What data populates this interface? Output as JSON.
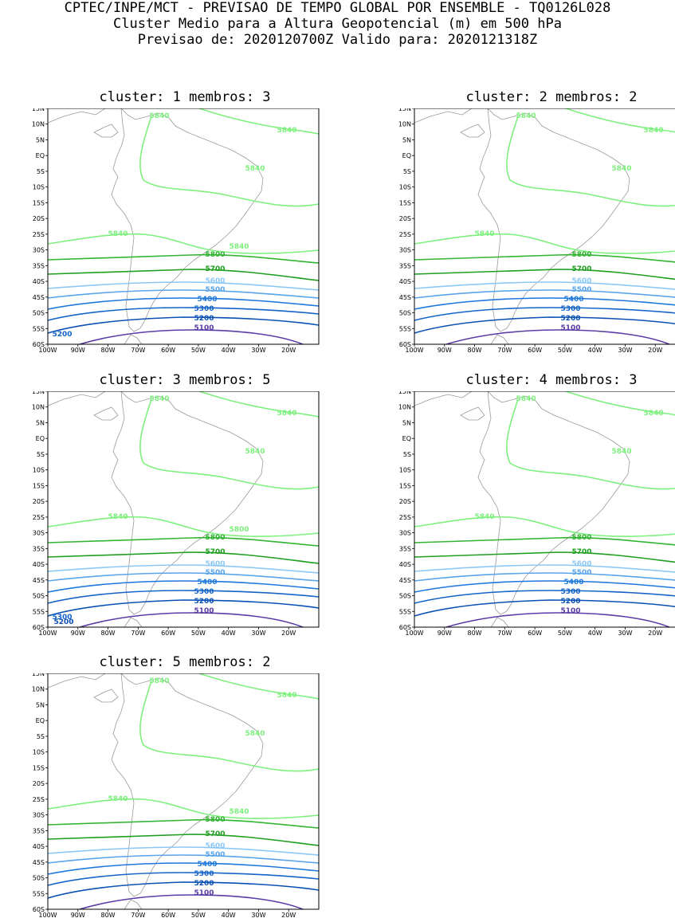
{
  "header": {
    "line1": "CPTEC/INPE/MCT - PREVISAO DE TEMPO GLOBAL POR ENSEMBLE - TQ0126L028",
    "line2": "Cluster Medio para a Altura Geopotencial (m) em 500 hPa",
    "line3": "Previsao de: 2020120700Z   Valido para: 2020121318Z"
  },
  "colors": {
    "c5840": "#7df07d",
    "c5800": "#32b432",
    "c5700": "#1e9e1e",
    "c5600": "#8cc8f5",
    "c5500": "#5aa5eb",
    "c5400": "#1e78dc",
    "c5300": "#1464c8",
    "c5200": "#0a50b4",
    "c5100": "#5a3ca5",
    "coast": "#9a9a9a"
  },
  "lat_labels": [
    "15N",
    "10N",
    "5N",
    "EQ",
    "5S",
    "10S",
    "15S",
    "20S",
    "25S",
    "30S",
    "35S",
    "40S",
    "45S",
    "50S",
    "55S",
    "60S"
  ],
  "lon_labels": [
    "100W",
    "90W",
    "80W",
    "70W",
    "60W",
    "50W",
    "40W",
    "30W",
    "20W"
  ],
  "panels": [
    {
      "title": "cluster: 1   membros: 3",
      "labels": {
        "a": "5840",
        "b": "5840",
        "c": "5840",
        "d": "5840",
        "e": "5840",
        "f": "5800",
        "g": "5700",
        "h": "5600",
        "i": "5500",
        "j": "5400",
        "k": "5300",
        "l": "5200",
        "m": "5100",
        "n": "5200"
      }
    },
    {
      "title": "cluster: 2   membros: 2",
      "labels": {
        "a": "5840",
        "b": "5840",
        "c": "5840",
        "d": "5840",
        "f": "5800",
        "g": "5700",
        "h": "5600",
        "i": "5500",
        "j": "5400",
        "k": "5300",
        "l": "5200",
        "m": "5100"
      }
    },
    {
      "title": "cluster: 3   membros: 5",
      "labels": {
        "a": "5840",
        "b": "5840",
        "c": "5840",
        "d": "5840",
        "e": "5800",
        "f": "5800",
        "g": "5700",
        "h": "5600",
        "i": "5500",
        "j": "5400",
        "k": "5300",
        "l": "5200",
        "m": "5100",
        "n": "5300",
        "o": "5200"
      }
    },
    {
      "title": "cluster: 4   membros: 3",
      "labels": {
        "a": "5840",
        "b": "5840",
        "c": "5840",
        "d": "5840",
        "f": "5800",
        "g": "5700",
        "h": "5600",
        "i": "5500",
        "j": "5400",
        "k": "5300",
        "l": "5200",
        "m": "5100"
      }
    },
    {
      "title": "cluster: 5   membros: 2",
      "labels": {
        "a": "5840",
        "b": "5840",
        "c": "5840",
        "d": "5840",
        "e": "5840",
        "f": "5800",
        "g": "5700",
        "h": "5600",
        "i": "5500",
        "j": "5400",
        "k": "5300",
        "l": "5200",
        "m": "5100"
      }
    }
  ]
}
